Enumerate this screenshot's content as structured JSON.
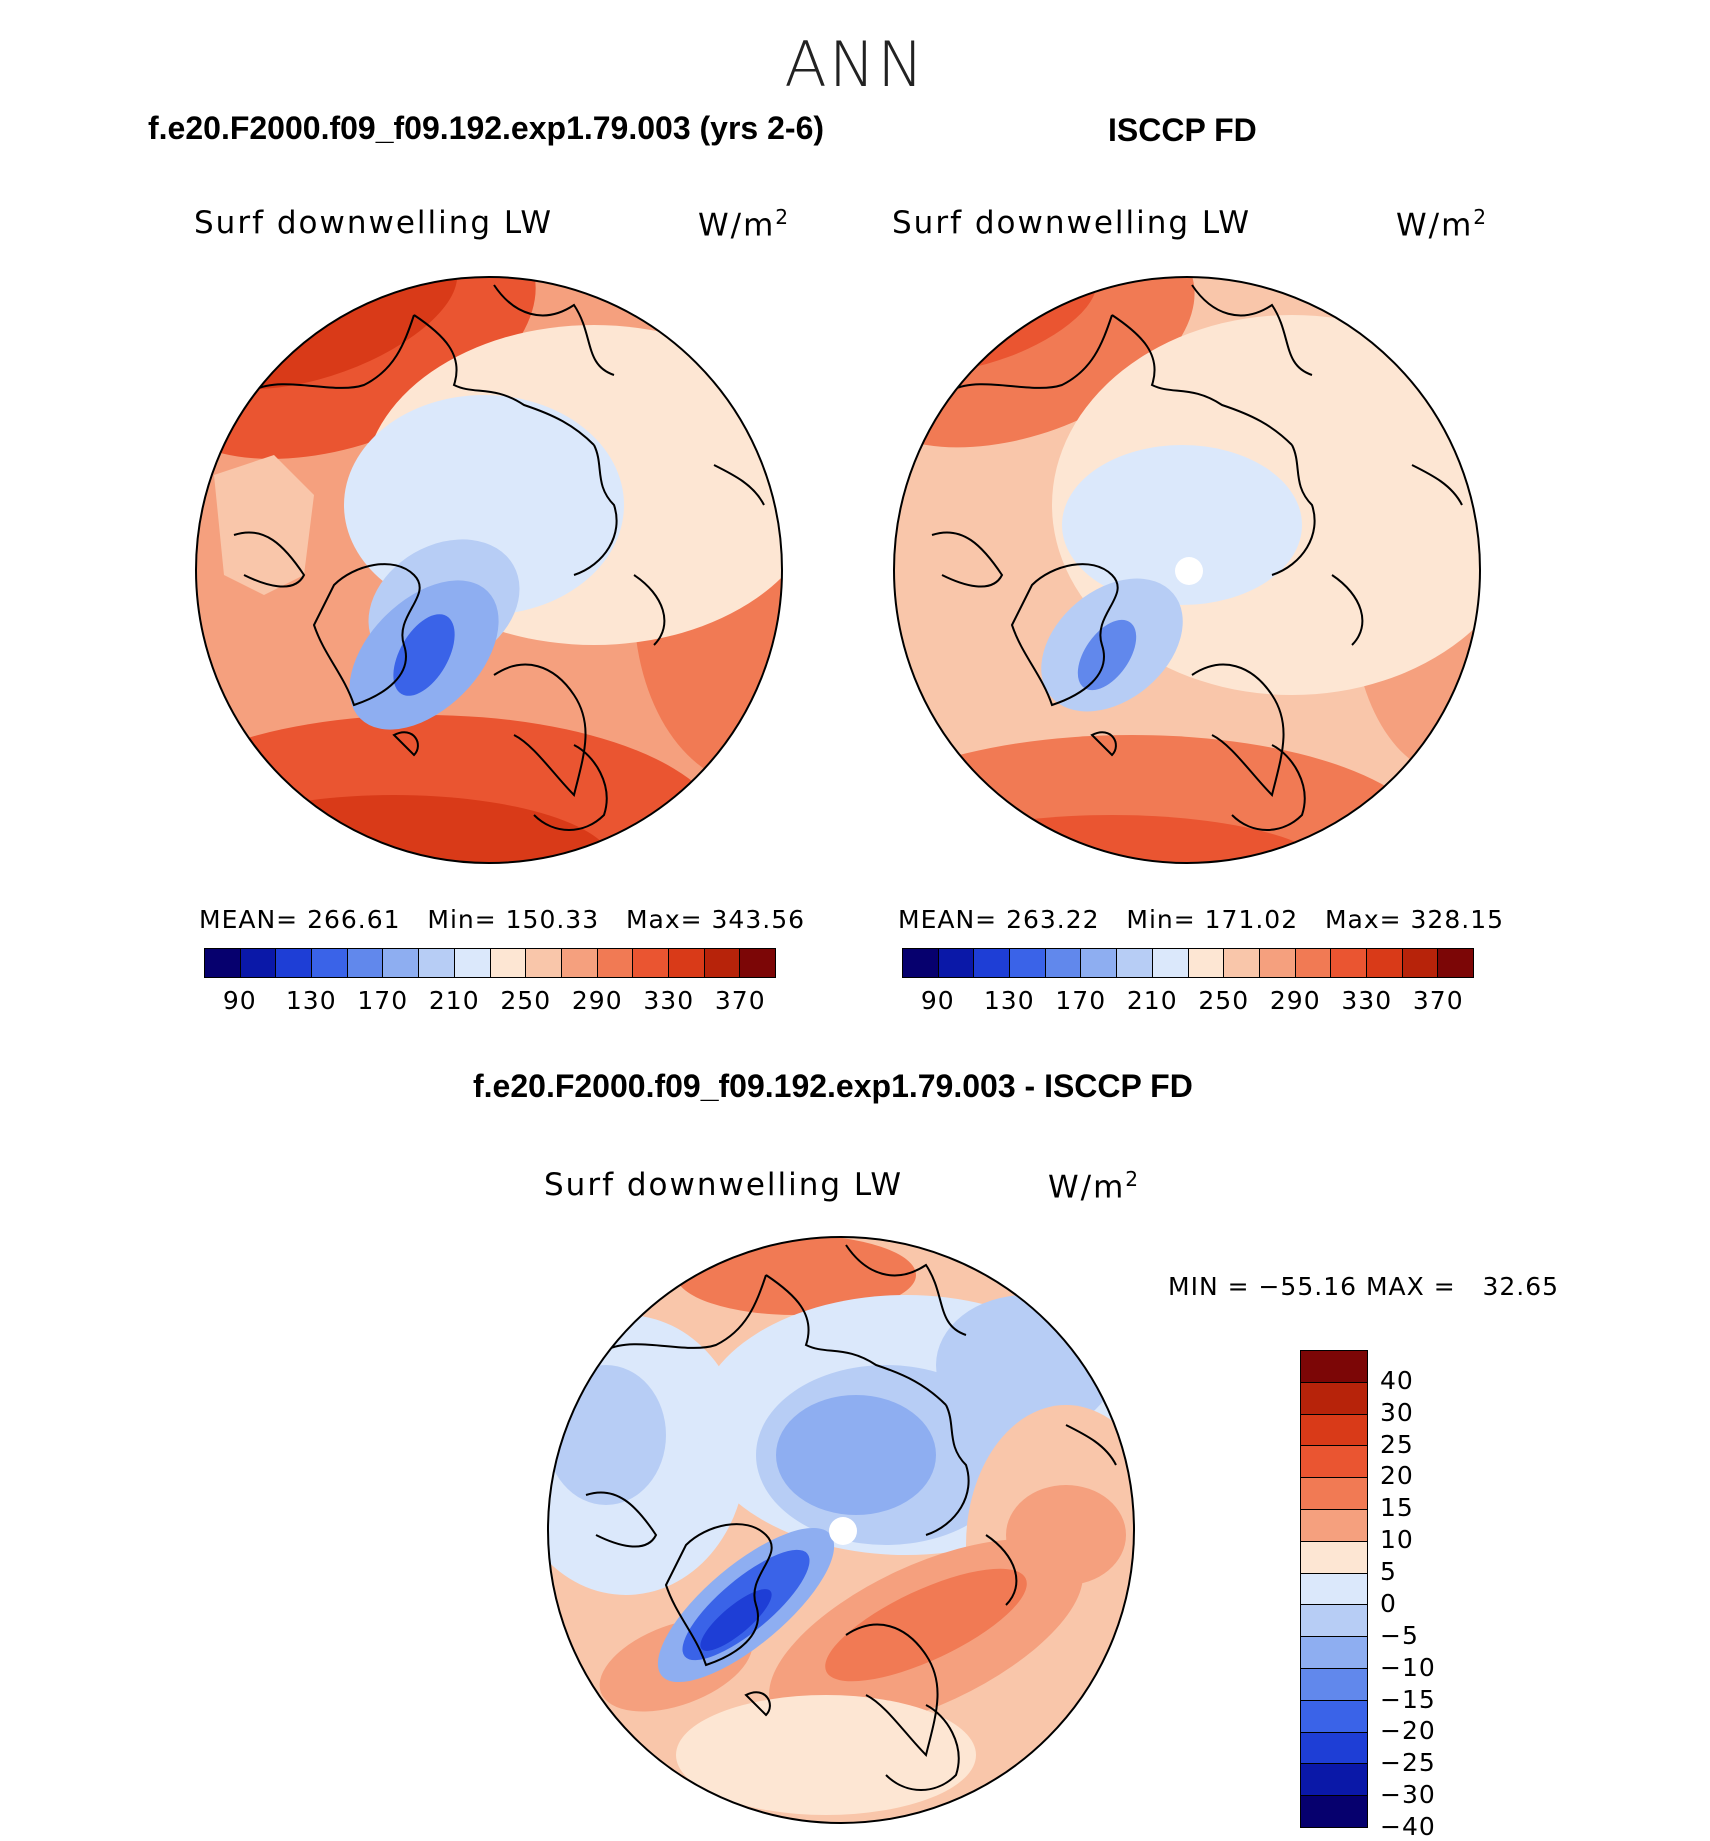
{
  "main_title": "ANN",
  "panels": {
    "model": {
      "title": "f.e20.F2000.f09_f09.192.exp1.79.003 (yrs 2-6)",
      "variable": "Surf downwelling LW",
      "units_base": "W/m",
      "units_exp": "2",
      "stats": "MEAN= 266.61   Min= 150.33   Max= 343.56"
    },
    "obs": {
      "title": "ISCCP FD",
      "variable": "Surf downwelling LW",
      "units_base": "W/m",
      "units_exp": "2",
      "stats": "MEAN= 263.22   Min= 171.02   Max= 328.15"
    },
    "diff": {
      "title": "f.e20.F2000.f09_f09.192.exp1.79.003 - ISCCP FD",
      "variable": "Surf downwelling LW",
      "units_base": "W/m",
      "units_exp": "2",
      "stats": "MIN = −55.16 MAX =   32.65"
    }
  },
  "colorbar_abs": {
    "colors": [
      "#06006e",
      "#0a18a8",
      "#1e3ed6",
      "#3a63e8",
      "#6188ec",
      "#8eaef1",
      "#b7cdf5",
      "#dbe8fb",
      "#fde6d3",
      "#f9c6aa",
      "#f5a07e",
      "#f17a54",
      "#ea5531",
      "#d93a18",
      "#b7230a",
      "#7c0606"
    ],
    "ticks": [
      "90",
      "130",
      "170",
      "210",
      "250",
      "290",
      "330",
      "370"
    ]
  },
  "colorbar_diff": {
    "colors": [
      "#7c0606",
      "#b7230a",
      "#d93a18",
      "#ea5531",
      "#f17a54",
      "#f5a07e",
      "#fde6d3",
      "#dbe8fb",
      "#b7cdf5",
      "#8eaef1",
      "#6188ec",
      "#3a63e8",
      "#1e3ed6",
      "#0a18a8",
      "#06006e"
    ],
    "ticks": [
      "40",
      "30",
      "25",
      "20",
      "15",
      "10",
      "5",
      "0",
      "−5",
      "−10",
      "−15",
      "−20",
      "−25",
      "−30",
      "−40"
    ]
  }
}
